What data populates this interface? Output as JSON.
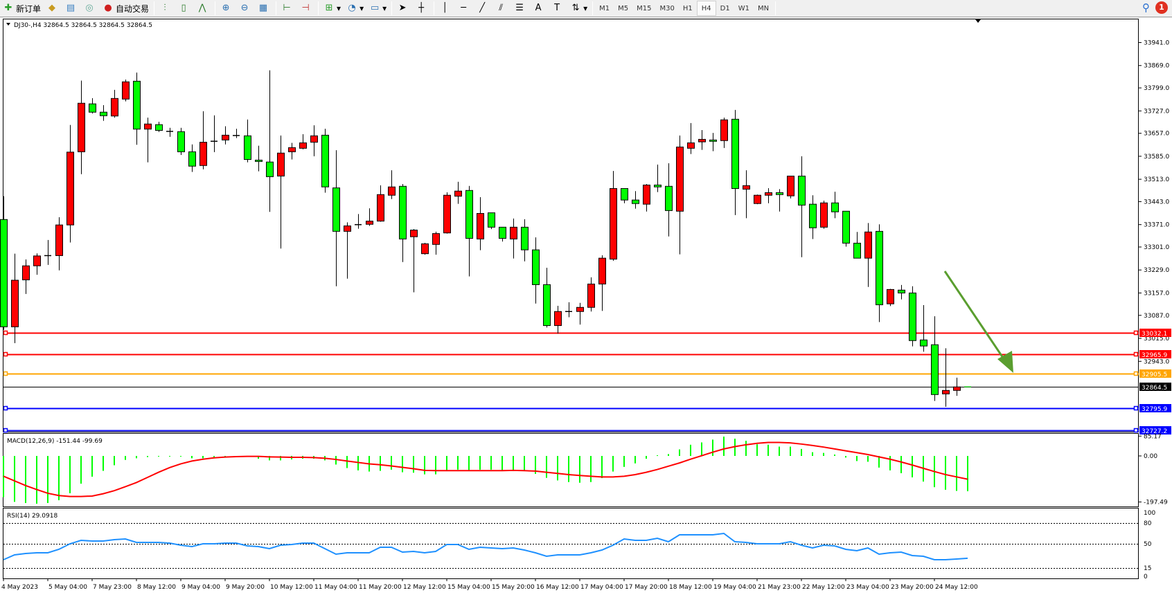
{
  "toolbar": {
    "new_order": "新订单",
    "auto_trading": "自动交易",
    "timeframes": [
      "M1",
      "M5",
      "M15",
      "M30",
      "H1",
      "H4",
      "D1",
      "W1",
      "MN"
    ],
    "active_timeframe": "H4",
    "notification_count": "1"
  },
  "chart": {
    "title": "DJ30-,H4  32864.5 32864.5 32864.5 32864.5",
    "price_ticks": [
      "33941.0",
      "33869.0",
      "33799.0",
      "33727.0",
      "33657.0",
      "33585.0",
      "33513.0",
      "33443.0",
      "33371.0",
      "33301.0",
      "33229.0",
      "33157.0",
      "33087.0",
      "33015.0",
      "32943.0"
    ],
    "levels": [
      {
        "value": "33032.1",
        "color": "#ff0000"
      },
      {
        "value": "32965.9",
        "color": "#ff0000"
      },
      {
        "value": "32905.5",
        "color": "#ffa500"
      },
      {
        "value": "32864.5",
        "color": "#000000"
      },
      {
        "value": "32795.9",
        "color": "#0000ff"
      },
      {
        "value": "32727.2",
        "color": "#0000ff"
      }
    ],
    "up_color": "#ff0000",
    "down_color": "#00ff00",
    "arrow_color": "#5a9e2f",
    "time_labels": [
      "4 May 2023",
      "5 May 04:00",
      "7 May 23:00",
      "8 May 12:00",
      "9 May 04:00",
      "9 May 20:00",
      "10 May 12:00",
      "11 May 04:00",
      "11 May 20:00",
      "12 May 12:00",
      "15 May 04:00",
      "15 May 20:00",
      "16 May 12:00",
      "17 May 04:00",
      "17 May 20:00",
      "18 May 12:00",
      "19 May 04:00",
      "21 May 23:00",
      "22 May 12:00",
      "23 May 04:00",
      "23 May 20:00",
      "24 May 12:00"
    ],
    "ohlc": [
      [
        33387,
        33460,
        33042,
        33051
      ],
      [
        33051,
        33280,
        33000,
        33197
      ],
      [
        33198,
        33262,
        33154,
        33242
      ],
      [
        33242,
        33281,
        33214,
        33273
      ],
      [
        33274,
        33323,
        33245,
        33274
      ],
      [
        33274,
        33394,
        33228,
        33370
      ],
      [
        33370,
        33683,
        33315,
        33598
      ],
      [
        33599,
        33822,
        33529,
        33751
      ],
      [
        33749,
        33767,
        33719,
        33723
      ],
      [
        33723,
        33745,
        33696,
        33712
      ],
      [
        33711,
        33793,
        33706,
        33766
      ],
      [
        33764,
        33825,
        33757,
        33818
      ],
      [
        33820,
        33847,
        33621,
        33670
      ],
      [
        33670,
        33706,
        33566,
        33686
      ],
      [
        33684,
        33693,
        33661,
        33666
      ],
      [
        33663,
        33674,
        33646,
        33663
      ],
      [
        33662,
        33674,
        33589,
        33599
      ],
      [
        33599,
        33622,
        33536,
        33554
      ],
      [
        33556,
        33726,
        33544,
        33629
      ],
      [
        33632,
        33713,
        33598,
        33632
      ],
      [
        33636,
        33679,
        33622,
        33651
      ],
      [
        33650,
        33671,
        33642,
        33650
      ],
      [
        33649,
        33700,
        33566,
        33575
      ],
      [
        33573,
        33618,
        33538,
        33569
      ],
      [
        33567,
        33854,
        33411,
        33521
      ],
      [
        33523,
        33650,
        33296,
        33595
      ],
      [
        33599,
        33627,
        33575,
        33612
      ],
      [
        33610,
        33654,
        33607,
        33627
      ],
      [
        33629,
        33682,
        33585,
        33649
      ],
      [
        33651,
        33671,
        33471,
        33489
      ],
      [
        33486,
        33604,
        33178,
        33350
      ],
      [
        33350,
        33378,
        33202,
        33367
      ],
      [
        33371,
        33404,
        33358,
        33371
      ],
      [
        33372,
        33422,
        33367,
        33382
      ],
      [
        33382,
        33494,
        33380,
        33465
      ],
      [
        33463,
        33541,
        33451,
        33489
      ],
      [
        33491,
        33498,
        33254,
        33326
      ],
      [
        33333,
        33357,
        33159,
        33354
      ],
      [
        33280,
        33314,
        33277,
        33311
      ],
      [
        33309,
        33349,
        33277,
        33343
      ],
      [
        33345,
        33472,
        33343,
        33463
      ],
      [
        33460,
        33505,
        33436,
        33476
      ],
      [
        33478,
        33492,
        33209,
        33328
      ],
      [
        33326,
        33457,
        33291,
        33406
      ],
      [
        33408,
        33408,
        33357,
        33363
      ],
      [
        33363,
        33363,
        33318,
        33328
      ],
      [
        33326,
        33390,
        33265,
        33363
      ],
      [
        33363,
        33388,
        33256,
        33292
      ],
      [
        33292,
        33331,
        33124,
        33183
      ],
      [
        33183,
        33236,
        33049,
        33055
      ],
      [
        33055,
        33117,
        33030,
        33099
      ],
      [
        33099,
        33128,
        33081,
        33099
      ],
      [
        33099,
        33126,
        33058,
        33112
      ],
      [
        33112,
        33206,
        33099,
        33185
      ],
      [
        33185,
        33275,
        33101,
        33266
      ],
      [
        33263,
        33539,
        33258,
        33484
      ],
      [
        33484,
        33484,
        33438,
        33448
      ],
      [
        33448,
        33476,
        33421,
        33437
      ],
      [
        33435,
        33498,
        33412,
        33495
      ],
      [
        33495,
        33559,
        33473,
        33489
      ],
      [
        33491,
        33563,
        33334,
        33415
      ],
      [
        33413,
        33650,
        33278,
        33614
      ],
      [
        33610,
        33689,
        33592,
        33627
      ],
      [
        33630,
        33667,
        33605,
        33638
      ],
      [
        33636,
        33658,
        33601,
        33632
      ],
      [
        33634,
        33706,
        33611,
        33699
      ],
      [
        33701,
        33730,
        33401,
        33484
      ],
      [
        33482,
        33541,
        33391,
        33493
      ],
      [
        33437,
        33465,
        33435,
        33463
      ],
      [
        33463,
        33485,
        33438,
        33471
      ],
      [
        33471,
        33482,
        33412,
        33465
      ],
      [
        33461,
        33523,
        33453,
        33523
      ],
      [
        33523,
        33585,
        33269,
        33432
      ],
      [
        33435,
        33463,
        33326,
        33361
      ],
      [
        33363,
        33446,
        33358,
        33439
      ],
      [
        33439,
        33474,
        33391,
        33411
      ],
      [
        33413,
        33413,
        33302,
        33313
      ],
      [
        33313,
        33348,
        33266,
        33266
      ],
      [
        33266,
        33376,
        33176,
        33348
      ],
      [
        33350,
        33372,
        33066,
        33120
      ],
      [
        33123,
        33170,
        33116,
        33168
      ],
      [
        33166,
        33182,
        33137,
        33157
      ],
      [
        33157,
        33178,
        32990,
        33008
      ],
      [
        33010,
        33119,
        32973,
        32991
      ],
      [
        32995,
        33084,
        32819,
        32839
      ],
      [
        32841,
        32984,
        32801,
        32852
      ],
      [
        32852,
        32892,
        32835,
        32863
      ],
      [
        32864.5,
        32864.5,
        32864.5,
        32864.5
      ]
    ]
  },
  "macd": {
    "label": "MACD(12,26,9) -151.44 -99.69",
    "axis": [
      "85.17",
      "0.00",
      "-197.49"
    ],
    "histogram": [
      -177,
      -197,
      -202,
      -205,
      -202,
      -190,
      -160,
      -119,
      -89,
      -64,
      -40,
      -17,
      -10,
      -5,
      -1,
      -1,
      -1,
      -10,
      -10,
      -5,
      -5,
      0,
      -2,
      -12,
      -19,
      -19,
      -15,
      -12,
      -12,
      -19,
      -37,
      -52,
      -62,
      -67,
      -64,
      -59,
      -70,
      -72,
      -79,
      -79,
      -65,
      -59,
      -65,
      -59,
      -59,
      -62,
      -62,
      -62,
      -77,
      -94,
      -105,
      -112,
      -115,
      -112,
      -95,
      -67,
      -47,
      -32,
      -12,
      3,
      8,
      28,
      48,
      58,
      70,
      83,
      74,
      65,
      50,
      48,
      40,
      40,
      30,
      16,
      13,
      6,
      -7,
      -22,
      -25,
      -50,
      -62,
      -74,
      -92,
      -110,
      -134,
      -145,
      -150,
      -151.44
    ],
    "signal": [
      -87,
      -107,
      -127,
      -144,
      -160,
      -170,
      -174,
      -174,
      -172,
      -162,
      -149,
      -132,
      -114,
      -92,
      -70,
      -50,
      -34,
      -22,
      -14,
      -8,
      -5,
      -3,
      -2,
      -2,
      -4,
      -5,
      -6,
      -6,
      -7,
      -10,
      -15,
      -22,
      -28,
      -34,
      -38,
      -43,
      -49,
      -55,
      -62,
      -63,
      -63,
      -63,
      -63,
      -63,
      -63,
      -63,
      -62,
      -63,
      -65,
      -70,
      -75,
      -80,
      -84,
      -87,
      -90,
      -90,
      -87,
      -80,
      -70,
      -58,
      -44,
      -30,
      -14,
      1,
      16,
      30,
      40,
      48,
      54,
      58,
      58,
      56,
      51,
      45,
      38,
      30,
      22,
      14,
      6,
      -4,
      -14,
      -26,
      -39,
      -53,
      -67,
      -80,
      -90,
      -99.69
    ]
  },
  "rsi": {
    "label": "RSI(14) 29.0918",
    "axis": [
      "100",
      "80",
      "50",
      "15",
      "0"
    ],
    "levels": [
      80,
      50,
      15
    ],
    "values": [
      27,
      34,
      36,
      37,
      37,
      42,
      50,
      55,
      54,
      54,
      56,
      57,
      52,
      52,
      52,
      51,
      48,
      46,
      50,
      50,
      51,
      51,
      47,
      46,
      43,
      48,
      49,
      51,
      51,
      43,
      35,
      37,
      37,
      37,
      45,
      45,
      38,
      39,
      37,
      39,
      49,
      49,
      42,
      45,
      44,
      43,
      44,
      41,
      37,
      32,
      34,
      34,
      34,
      37,
      41,
      48,
      57,
      55,
      55,
      58,
      53,
      63,
      63,
      63,
      63,
      65,
      53,
      52,
      50,
      50,
      50,
      53,
      48,
      44,
      48,
      47,
      42,
      40,
      44,
      35,
      37,
      38,
      33,
      32,
      27,
      27,
      28,
      29.09
    ]
  }
}
